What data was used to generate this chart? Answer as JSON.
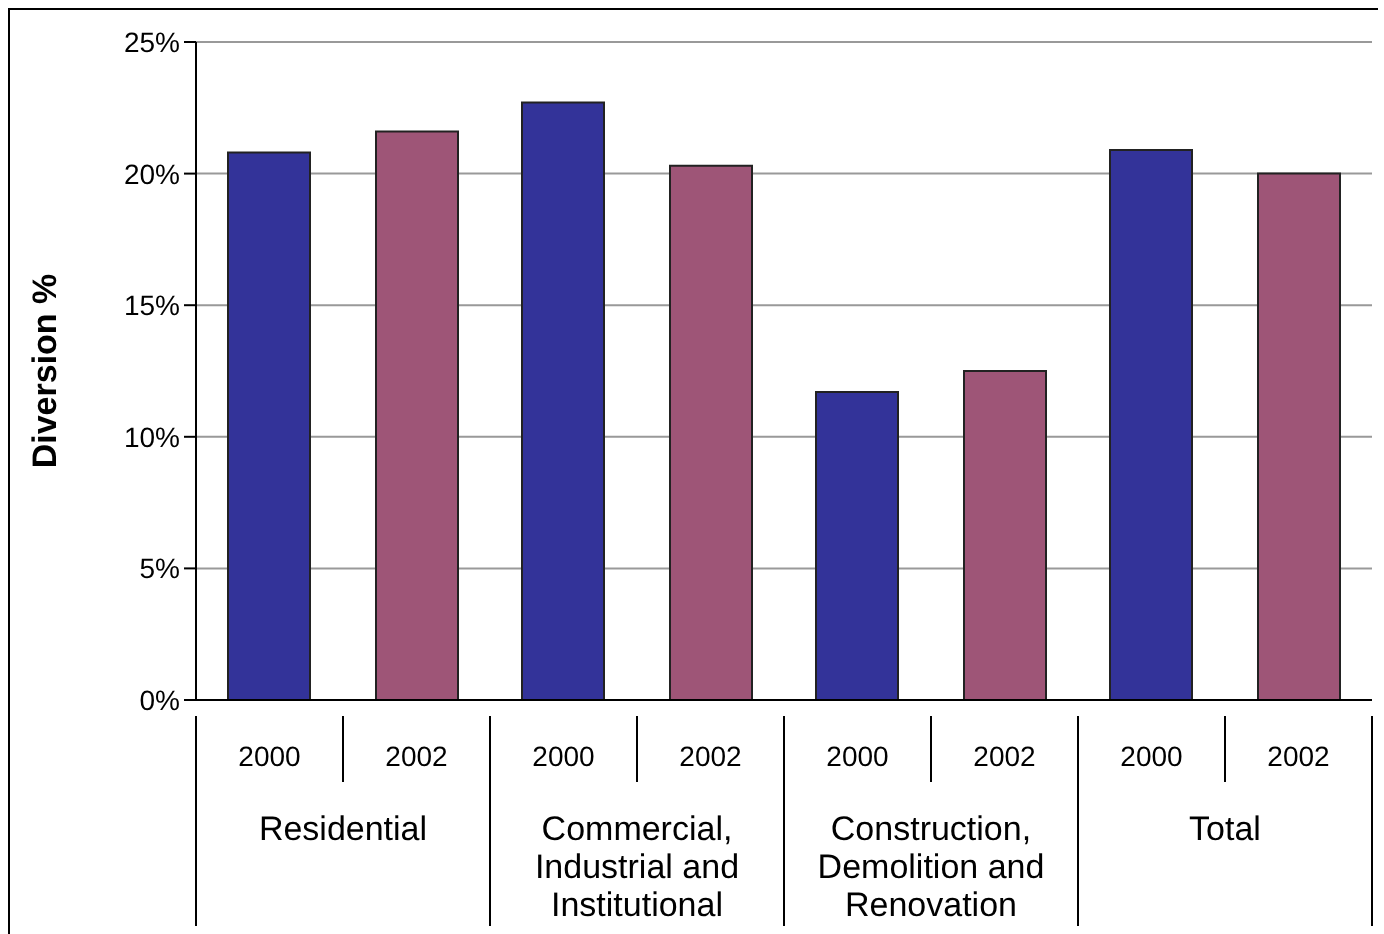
{
  "chart_data": {
    "type": "bar",
    "ylabel": "Diversion %",
    "categories": [
      "Residential",
      "Commercial, Industrial and Institutional",
      "Construction, Demolition and Renovation",
      "Total"
    ],
    "series": [
      {
        "name": "2000",
        "color": "#333399",
        "values": [
          20.8,
          22.7,
          11.7,
          20.9
        ]
      },
      {
        "name": "2002",
        "color": "#9e5577",
        "values": [
          21.6,
          20.3,
          12.5,
          20.0
        ]
      }
    ],
    "ylim": [
      0,
      25
    ],
    "yticks": [
      {
        "value": 0,
        "label": "0%"
      },
      {
        "value": 5,
        "label": "5%"
      },
      {
        "value": 10,
        "label": "10%"
      },
      {
        "value": 15,
        "label": "15%"
      },
      {
        "value": 20,
        "label": "20%"
      },
      {
        "value": 25,
        "label": "25%"
      }
    ],
    "grid": "y",
    "legend": false
  }
}
